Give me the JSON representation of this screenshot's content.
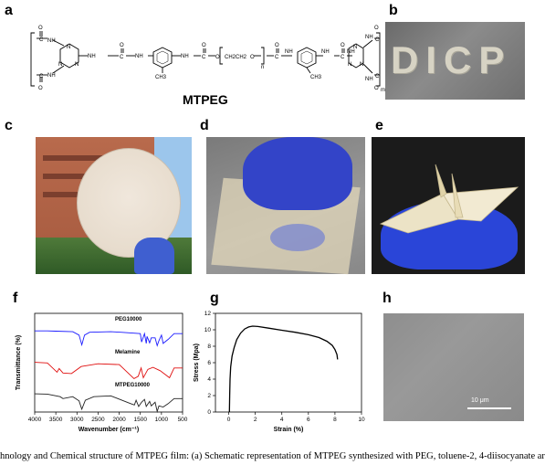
{
  "panels": {
    "a": "a",
    "b": "b",
    "c": "c",
    "d": "d",
    "e": "e",
    "f": "f",
    "g": "g",
    "h": "h"
  },
  "structure": {
    "name": "MTPEG",
    "groups": [
      "C",
      "O",
      "NH",
      "N",
      "CH3",
      "O",
      "C",
      "O",
      "CH2CH2",
      "O",
      "n",
      "m"
    ]
  },
  "photo_b": {
    "text": "DICP"
  },
  "sem": {
    "scale_label": "10 μm"
  },
  "caption": "hnology and Chemical structure of MTPEG film: (a) Schematic representation of MTPEG synthesized with PEG, toluene-2, 4-diisocyanate ar",
  "chart_data": [
    {
      "type": "line",
      "panel": "f",
      "xlabel": "Wavenumber (cm⁻¹)",
      "ylabel": "Transmittance (%)",
      "xlim": [
        4000,
        500
      ],
      "x_ticks": [
        4000,
        3500,
        3000,
        2500,
        2000,
        1500,
        1000,
        500
      ],
      "series": [
        {
          "name": "PEG10000",
          "color": "#1a1aff",
          "offset": 2.0,
          "x": [
            4000,
            3700,
            3500,
            3100,
            2950,
            2885,
            2820,
            2700,
            2200,
            1960,
            1500,
            1470,
            1400,
            1360,
            1340,
            1280,
            1240,
            1150,
            1100,
            1060,
            1000,
            960,
            840,
            700,
            500
          ],
          "y": [
            0.55,
            0.55,
            0.54,
            0.52,
            0.4,
            0.05,
            0.4,
            0.5,
            0.52,
            0.5,
            0.45,
            0.15,
            0.45,
            0.1,
            0.35,
            0.12,
            0.3,
            0.3,
            0.02,
            0.2,
            0.4,
            0.1,
            0.25,
            0.45,
            0.45
          ]
        },
        {
          "name": "Melamine",
          "color": "#e01010",
          "offset": 1.0,
          "x": [
            4000,
            3700,
            3470,
            3420,
            3330,
            3130,
            2900,
            2500,
            2000,
            1650,
            1550,
            1480,
            1430,
            1320,
            1200,
            1030,
            810,
            700,
            500
          ],
          "y": [
            0.6,
            0.58,
            0.25,
            0.38,
            0.22,
            0.2,
            0.45,
            0.55,
            0.52,
            0.02,
            0.1,
            0.4,
            0.05,
            0.35,
            0.42,
            0.3,
            0.05,
            0.4,
            0.4
          ]
        },
        {
          "name": "MTPEG10000",
          "color": "#222222",
          "offset": 0.0,
          "x": [
            4000,
            3700,
            3400,
            3330,
            3100,
            2950,
            2885,
            2800,
            2600,
            2200,
            1730,
            1640,
            1600,
            1540,
            1470,
            1400,
            1360,
            1280,
            1240,
            1150,
            1100,
            1060,
            960,
            840,
            700,
            500
          ],
          "y": [
            0.65,
            0.64,
            0.55,
            0.48,
            0.55,
            0.4,
            0.1,
            0.42,
            0.55,
            0.58,
            0.3,
            0.25,
            0.42,
            0.2,
            0.35,
            0.45,
            0.2,
            0.38,
            0.22,
            0.35,
            0.02,
            0.22,
            0.18,
            0.3,
            0.48,
            0.48
          ]
        }
      ]
    },
    {
      "type": "line",
      "panel": "g",
      "xlabel": "Strain (%)",
      "ylabel": "Stress (Mpa)",
      "xlim": [
        -1,
        10
      ],
      "ylim": [
        0,
        12
      ],
      "x_ticks": [
        0,
        2,
        4,
        6,
        8,
        10
      ],
      "y_ticks": [
        0,
        2,
        4,
        6,
        8,
        10,
        12
      ],
      "series": [
        {
          "color": "#000000",
          "x": [
            0.05,
            0.07,
            0.1,
            0.15,
            0.25,
            0.4,
            0.6,
            0.9,
            1.2,
            1.5,
            1.8,
            2.2,
            3,
            4,
            5,
            6,
            6.8,
            7.4,
            7.8,
            8.0,
            8.15,
            8.2
          ],
          "y": [
            0,
            2,
            4,
            5.5,
            6.8,
            7.8,
            8.8,
            9.6,
            10.1,
            10.35,
            10.45,
            10.4,
            10.2,
            9.95,
            9.7,
            9.4,
            9.05,
            8.6,
            8.1,
            7.6,
            7.0,
            6.4
          ]
        }
      ]
    }
  ]
}
